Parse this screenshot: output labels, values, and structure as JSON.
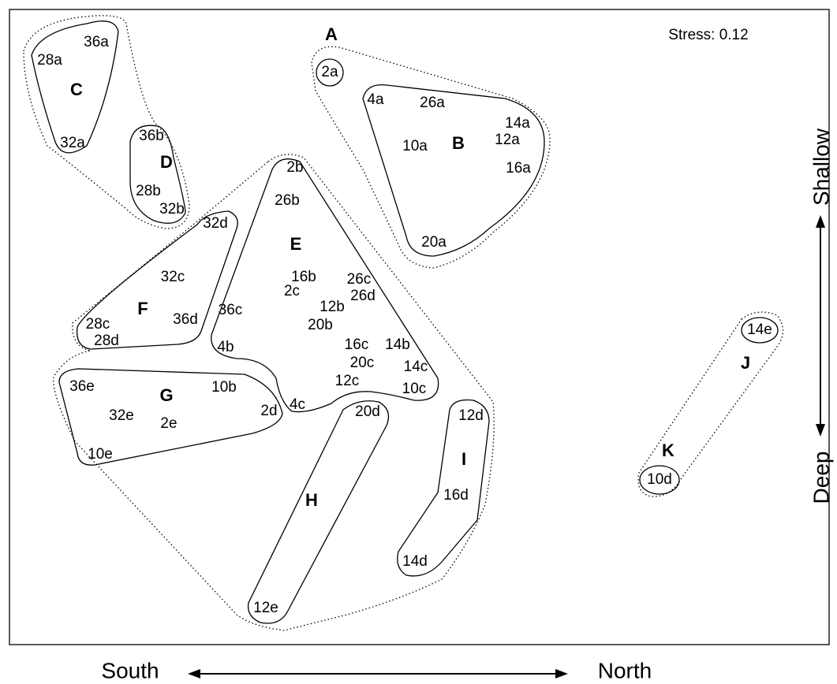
{
  "stress": "Stress: 0.12",
  "groups": [
    {
      "label": "A",
      "points": [
        "2a"
      ]
    },
    {
      "label": "B",
      "points": [
        "4a",
        "26a",
        "14a",
        "12a",
        "10a",
        "16a",
        "20a"
      ]
    },
    {
      "label": "C",
      "points": [
        "36a",
        "28a",
        "32a"
      ]
    },
    {
      "label": "D",
      "points": [
        "36b",
        "28b",
        "32b"
      ]
    },
    {
      "label": "E",
      "points": [
        "2b",
        "26b",
        "16b",
        "26c",
        "2c",
        "26d",
        "12b",
        "36c",
        "20b",
        "16c",
        "14b",
        "4b",
        "20c",
        "14c",
        "12c",
        "10c",
        "4c"
      ]
    },
    {
      "label": "F",
      "points": [
        "32d",
        "32c",
        "36d",
        "28c",
        "28d"
      ]
    },
    {
      "label": "G",
      "points": [
        "36e",
        "10b",
        "32e",
        "2e",
        "2d",
        "10e"
      ]
    },
    {
      "label": "H",
      "points": [
        "20d",
        "12e"
      ]
    },
    {
      "label": "I",
      "points": [
        "12d",
        "16d",
        "14d"
      ]
    },
    {
      "label": "J",
      "points": [
        "14e"
      ]
    },
    {
      "label": "K",
      "points": [
        "10d"
      ]
    }
  ],
  "axes": {
    "x_left": "South",
    "x_right": "North",
    "y_top": "Shallow",
    "y_bottom": "Deep"
  }
}
